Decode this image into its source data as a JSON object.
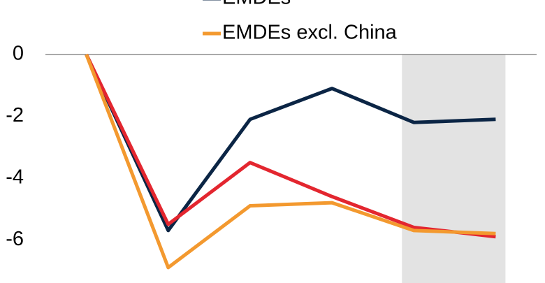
{
  "chart_data": {
    "type": "line",
    "categories": [
      null,
      null,
      null,
      null,
      null,
      null
    ],
    "series": [
      {
        "name": "EMDEs",
        "color": "#0b2545",
        "values": [
          0,
          -5.7,
          -2.1,
          -1.1,
          -2.2,
          -2.1
        ]
      },
      {
        "color": "#e3262f",
        "values": [
          0,
          -5.5,
          -3.5,
          -4.6,
          -5.6,
          -5.9
        ]
      },
      {
        "name": "EMDEs excl. China",
        "color": "#f3992f",
        "values": [
          0,
          -6.9,
          -4.9,
          -4.8,
          -5.7,
          -5.8
        ]
      }
    ],
    "ylim": [
      -7.4,
      0
    ],
    "yticks": [
      0,
      -2,
      -4,
      -6
    ]
  }
}
